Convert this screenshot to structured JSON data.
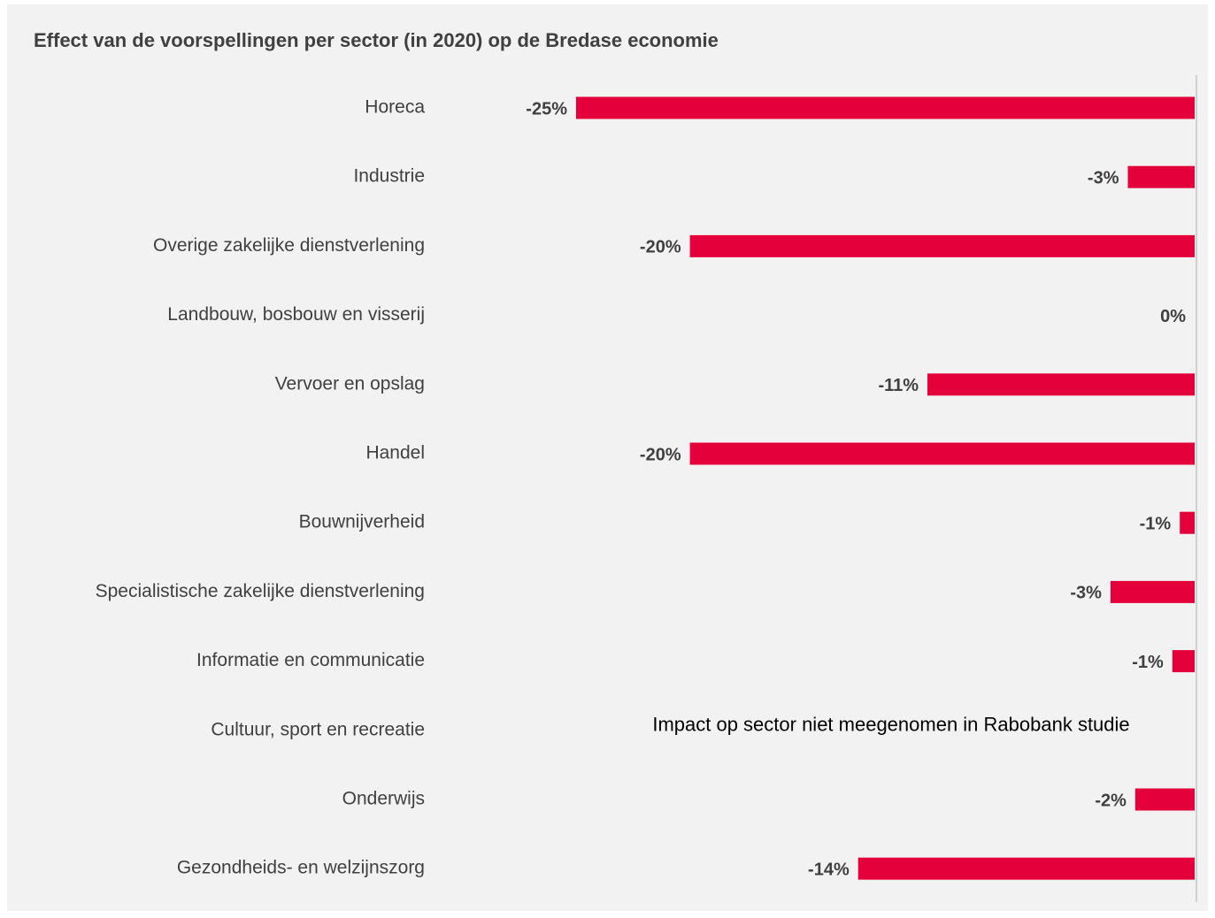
{
  "chart_data": {
    "type": "bar",
    "orientation": "horizontal",
    "title": "Effect van de voorspellingen per sector (in 2020) op de Bredase economie",
    "categories": [
      "Horeca",
      "Industrie",
      "Overige zakelijke dienstverlening",
      "Landbouw, bosbouw en visserij",
      "Vervoer en opslag",
      "Handel",
      "Bouwnijverheid",
      "Specialistische zakelijke dienstverlening",
      "Informatie en communicatie",
      "Cultuur, sport en recreatie",
      "Onderwijs",
      "Gezondheids- en welzijnszorg"
    ],
    "values": [
      -25,
      -2.7,
      -20.4,
      0,
      -10.8,
      -20.4,
      -0.6,
      -3.4,
      -0.9,
      null,
      -2.4,
      -13.6
    ],
    "value_labels": [
      "-25%",
      "-3%",
      "-20%",
      "0%",
      "-11%",
      "-20%",
      "-1%",
      "-3%",
      "-1%",
      null,
      "-2%",
      "-14%"
    ],
    "annotation": "Impact op sector niet meegenomen in Rabobank studie",
    "color": "#e4003a",
    "xlim": [
      -25,
      0
    ]
  }
}
